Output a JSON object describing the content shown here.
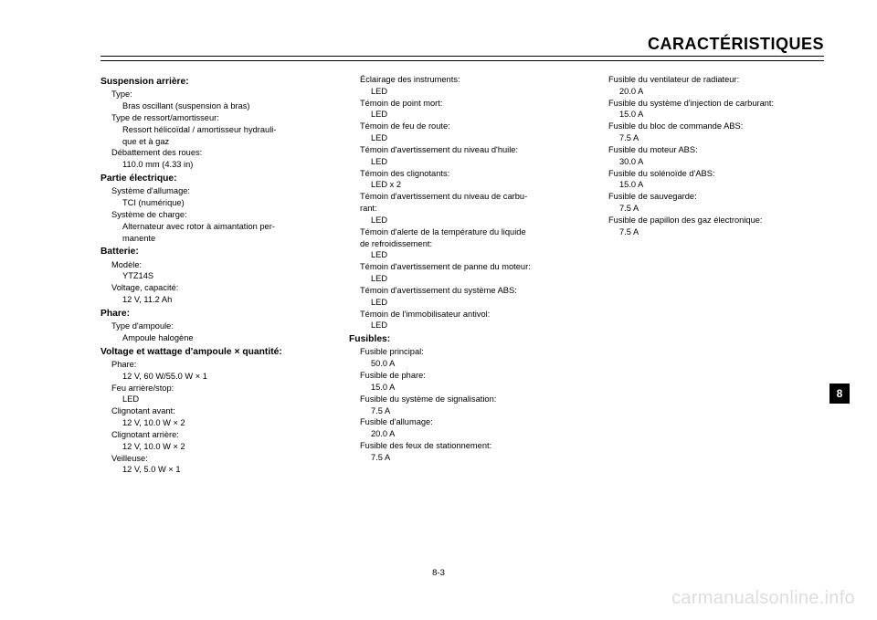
{
  "header": {
    "title": "CARACTÉRISTIQUES"
  },
  "side_tab": "8",
  "page_number": "8-3",
  "watermark": "carmanualsonline.info",
  "col1": {
    "s1": {
      "head": "Suspension arrière:",
      "i1l": "Type:",
      "i1v": "Bras oscillant (suspension à bras)",
      "i2l": "Type de ressort/amortisseur:",
      "i2v1": "Ressort  hélicoïdal  /  amortisseur  hydrauli-",
      "i2v2": "que et à gaz",
      "i3l": "Débattement des roues:",
      "i3v": "110.0 mm (4.33 in)"
    },
    "s2": {
      "head": "Partie électrique:",
      "i1l": "Système d'allumage:",
      "i1v": "TCI (numérique)",
      "i2l": "Système de charge:",
      "i2v1": "Alternateur  avec  rotor  à  aimantation  per-",
      "i2v2": "manente"
    },
    "s3": {
      "head": "Batterie:",
      "i1l": "Modèle:",
      "i1v": "YTZ14S",
      "i2l": "Voltage, capacité:",
      "i2v": "12 V, 11.2 Ah"
    },
    "s4": {
      "head": "Phare:",
      "i1l": "Type d'ampoule:",
      "i1v": "Ampoule halogène"
    },
    "s5": {
      "head": "Voltage et wattage d'ampoule × quantité:",
      "i1l": "Phare:",
      "i1v": "12 V, 60 W/55.0 W × 1",
      "i2l": "Feu arrière/stop:",
      "i2v": "LED",
      "i3l": "Clignotant avant:",
      "i3v": "12 V, 10.0 W × 2",
      "i4l": "Clignotant arrière:",
      "i4v": "12 V, 10.0 W × 2",
      "i5l": "Veilleuse:",
      "i5v": "12 V, 5.0 W × 1"
    }
  },
  "col2": {
    "i1l": "Éclairage des instruments:",
    "i1v": "LED",
    "i2l": "Témoin de point mort:",
    "i2v": "LED",
    "i3l": "Témoin de feu de route:",
    "i3v": "LED",
    "i4l": "Témoin d'avertissement du niveau d'huile:",
    "i4v": "LED",
    "i5l": "Témoin des clignotants:",
    "i5v": "LED x 2",
    "i6l1": "Témoin  d'avertissement  du  niveau  de  carbu-",
    "i6l2": "rant:",
    "i6v": "LED",
    "i7l1": "Témoin  d'alerte  de  la  température  du  liquide",
    "i7l2": "de refroidissement:",
    "i7v": "LED",
    "i8l": "Témoin d'avertissement de panne du moteur:",
    "i8v": "LED",
    "i9l": "Témoin d'avertissement du système ABS:",
    "i9v": "LED",
    "i10l": "Témoin de l'immobilisateur antivol:",
    "i10v": "LED",
    "s_fus": {
      "head": "Fusibles:",
      "i1l": "Fusible principal:",
      "i1v": "50.0 A",
      "i2l": "Fusible de phare:",
      "i2v": "15.0 A",
      "i3l": "Fusible du système de signalisation:",
      "i3v": "7.5 A",
      "i4l": "Fusible d'allumage:",
      "i4v": "20.0 A",
      "i5l": "Fusible des feux de stationnement:",
      "i5v": "7.5 A"
    }
  },
  "col3": {
    "i1l": "Fusible du ventilateur de radiateur:",
    "i1v": "20.0 A",
    "i2l": "Fusible du système d'injection de carburant:",
    "i2v": "15.0 A",
    "i3l": "Fusible du bloc de commande ABS:",
    "i3v": "7.5 A",
    "i4l": "Fusible du moteur ABS:",
    "i4v": "30.0 A",
    "i5l": "Fusible du solénoïde d'ABS:",
    "i5v": "15.0 A",
    "i6l": "Fusible de sauvegarde:",
    "i6v": "7.5 A",
    "i7l": "Fusible de papillon des gaz électronique:",
    "i7v": "7.5 A"
  }
}
